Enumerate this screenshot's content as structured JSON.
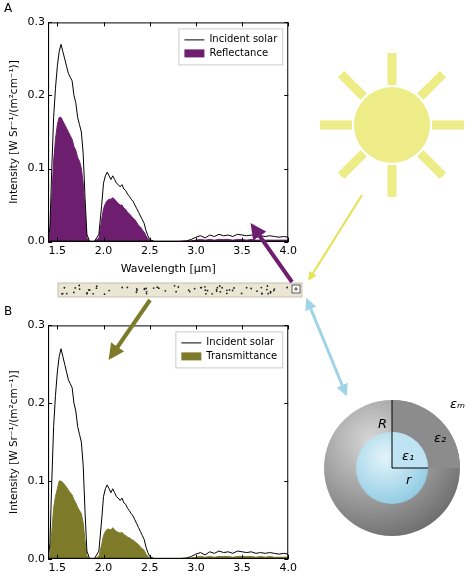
{
  "chart_data": [
    {
      "type": "line",
      "title": "A",
      "x_label": "Wavelength [µm]",
      "y_label": "Intensity [W Sr⁻¹/(m²cm⁻¹)]",
      "xlim": [
        1.4,
        4.0
      ],
      "ylim": [
        0,
        0.3
      ],
      "xticks": [
        1.5,
        {
          "value": 2,
          "label": "2.0"
        },
        2.5,
        {
          "value": 3,
          "label": "3.0"
        },
        3.5,
        {
          "value": 4,
          "label": "4.0"
        }
      ],
      "yticks": [
        {
          "value": 0,
          "label": "0.0"
        },
        0.1,
        0.2,
        0.3
      ],
      "grid": false,
      "legend": "upper right",
      "x": [
        1.4,
        1.42,
        1.44,
        1.46,
        1.48,
        1.5,
        1.52,
        1.54,
        1.56,
        1.58,
        1.6,
        1.62,
        1.64,
        1.66,
        1.68,
        1.7,
        1.72,
        1.74,
        1.76,
        1.78,
        1.8,
        1.82,
        1.85,
        1.9,
        1.95,
        1.98,
        2.0,
        2.02,
        2.04,
        2.06,
        2.08,
        2.1,
        2.12,
        2.14,
        2.16,
        2.18,
        2.2,
        2.22,
        2.24,
        2.26,
        2.28,
        2.3,
        2.32,
        2.34,
        2.36,
        2.38,
        2.4,
        2.42,
        2.44,
        2.46,
        2.48,
        2.5,
        2.55,
        2.6,
        2.7,
        2.8,
        2.9,
        2.95,
        3.0,
        3.05,
        3.1,
        3.15,
        3.2,
        3.25,
        3.3,
        3.35,
        3.4,
        3.45,
        3.5,
        3.55,
        3.6,
        3.65,
        3.7,
        3.75,
        3.8,
        3.85,
        3.9,
        3.95,
        4.0
      ],
      "series": [
        {
          "name": "Incident solar",
          "color": "#000000",
          "type": "line",
          "values": [
            0,
            0.02,
            0.1,
            0.17,
            0.21,
            0.24,
            0.26,
            0.27,
            0.26,
            0.25,
            0.24,
            0.23,
            0.225,
            0.22,
            0.2,
            0.19,
            0.17,
            0.16,
            0.15,
            0.12,
            0.06,
            0.01,
            0,
            0,
            0.01,
            0.05,
            0.08,
            0.09,
            0.095,
            0.09,
            0.085,
            0.09,
            0.085,
            0.08,
            0.078,
            0.075,
            0.078,
            0.072,
            0.07,
            0.065,
            0.062,
            0.058,
            0.055,
            0.05,
            0.045,
            0.04,
            0.035,
            0.03,
            0.025,
            0.015,
            0.008,
            0.003,
            0,
            0,
            0,
            0,
            0.001,
            0.003,
            0.006,
            0.008,
            0.005,
            0.009,
            0.007,
            0.01,
            0.008,
            0.009,
            0.007,
            0.01,
            0.009,
            0.008,
            0.009,
            0.007,
            0.008,
            0.007,
            0.008,
            0.007,
            0.006,
            0.007,
            0.006
          ]
        },
        {
          "name": "Reflectance",
          "color": "#6e1e6e",
          "type": "area",
          "values": [
            0,
            0.01,
            0.06,
            0.11,
            0.14,
            0.16,
            0.17,
            0.17,
            0.165,
            0.16,
            0.155,
            0.15,
            0.145,
            0.14,
            0.13,
            0.125,
            0.115,
            0.11,
            0.1,
            0.08,
            0.04,
            0.005,
            0,
            0,
            0.005,
            0.03,
            0.045,
            0.052,
            0.056,
            0.058,
            0.058,
            0.06,
            0.058,
            0.055,
            0.052,
            0.05,
            0.05,
            0.046,
            0.044,
            0.04,
            0.038,
            0.035,
            0.032,
            0.03,
            0.026,
            0.022,
            0.02,
            0.016,
            0.013,
            0.008,
            0.004,
            0.002,
            0,
            0,
            0,
            0,
            0,
            0.001,
            0.002,
            0.003,
            0.002,
            0.003,
            0.002,
            0.003,
            0.003,
            0.003,
            0.002,
            0.003,
            0.003,
            0.002,
            0.003,
            0.002,
            0.002,
            0.002,
            0.002,
            0.002,
            0.002,
            0.002,
            0.002
          ]
        }
      ]
    },
    {
      "type": "line",
      "title": "B",
      "y_label": "Intensity [W Sr⁻¹/(m²cm⁻¹)]",
      "xlim": [
        1.4,
        4.0
      ],
      "ylim": [
        0,
        0.3
      ],
      "xticks": [
        1.5,
        {
          "value": 2,
          "label": "2.0"
        },
        2.5,
        {
          "value": 3,
          "label": "3.0"
        },
        3.5,
        {
          "value": 4,
          "label": "4.0"
        }
      ],
      "yticks": [
        {
          "value": 0,
          "label": "0.0"
        },
        0.1,
        0.2,
        0.3
      ],
      "grid": false,
      "legend": "upper right",
      "x": [
        1.4,
        1.42,
        1.44,
        1.46,
        1.48,
        1.5,
        1.52,
        1.54,
        1.56,
        1.58,
        1.6,
        1.62,
        1.64,
        1.66,
        1.68,
        1.7,
        1.72,
        1.74,
        1.76,
        1.78,
        1.8,
        1.82,
        1.85,
        1.9,
        1.95,
        1.98,
        2.0,
        2.02,
        2.04,
        2.06,
        2.08,
        2.1,
        2.12,
        2.14,
        2.16,
        2.18,
        2.2,
        2.22,
        2.24,
        2.26,
        2.28,
        2.3,
        2.32,
        2.34,
        2.36,
        2.38,
        2.4,
        2.42,
        2.44,
        2.46,
        2.48,
        2.5,
        2.55,
        2.6,
        2.7,
        2.8,
        2.9,
        2.95,
        3.0,
        3.05,
        3.1,
        3.15,
        3.2,
        3.25,
        3.3,
        3.35,
        3.4,
        3.45,
        3.5,
        3.55,
        3.6,
        3.65,
        3.7,
        3.75,
        3.8,
        3.85,
        3.9,
        3.95,
        4.0
      ],
      "series": [
        {
          "name": "Incident solar",
          "color": "#000000",
          "type": "line",
          "values": [
            0,
            0.02,
            0.1,
            0.17,
            0.21,
            0.24,
            0.26,
            0.27,
            0.26,
            0.25,
            0.24,
            0.23,
            0.225,
            0.22,
            0.2,
            0.19,
            0.17,
            0.16,
            0.15,
            0.12,
            0.06,
            0.01,
            0,
            0,
            0.01,
            0.05,
            0.08,
            0.09,
            0.095,
            0.09,
            0.085,
            0.09,
            0.085,
            0.08,
            0.078,
            0.075,
            0.078,
            0.072,
            0.07,
            0.065,
            0.062,
            0.058,
            0.055,
            0.05,
            0.045,
            0.04,
            0.035,
            0.03,
            0.025,
            0.015,
            0.008,
            0.003,
            0,
            0,
            0,
            0,
            0.001,
            0.003,
            0.006,
            0.008,
            0.005,
            0.009,
            0.007,
            0.01,
            0.008,
            0.009,
            0.007,
            0.01,
            0.009,
            0.008,
            0.009,
            0.007,
            0.008,
            0.007,
            0.008,
            0.007,
            0.006,
            0.007,
            0.006
          ]
        },
        {
          "name": "Transmittance",
          "color": "#7d7a2a",
          "type": "area",
          "values": [
            0,
            0.006,
            0.035,
            0.065,
            0.08,
            0.09,
            0.1,
            0.1,
            0.098,
            0.095,
            0.092,
            0.088,
            0.085,
            0.082,
            0.076,
            0.072,
            0.066,
            0.062,
            0.058,
            0.046,
            0.023,
            0.004,
            0,
            0,
            0.003,
            0.018,
            0.03,
            0.035,
            0.038,
            0.038,
            0.037,
            0.04,
            0.037,
            0.035,
            0.034,
            0.033,
            0.034,
            0.031,
            0.03,
            0.028,
            0.027,
            0.025,
            0.024,
            0.022,
            0.02,
            0.018,
            0.015,
            0.013,
            0.011,
            0.006,
            0.003,
            0.001,
            0,
            0,
            0,
            0,
            0,
            0.001,
            0.002,
            0.003,
            0.002,
            0.003,
            0.002,
            0.003,
            0.003,
            0.003,
            0.002,
            0.003,
            0.003,
            0.003,
            0.003,
            0.002,
            0.003,
            0.002,
            0.003,
            0.002,
            0.002,
            0.002,
            0.002
          ]
        }
      ]
    }
  ],
  "diagram": {
    "sphere": {
      "outer_radius": "R",
      "outer_permittivity": "ε₂",
      "inner_permittivity": "ε₁",
      "inner_radius": "r",
      "medium_permittivity": "εₘ"
    }
  }
}
